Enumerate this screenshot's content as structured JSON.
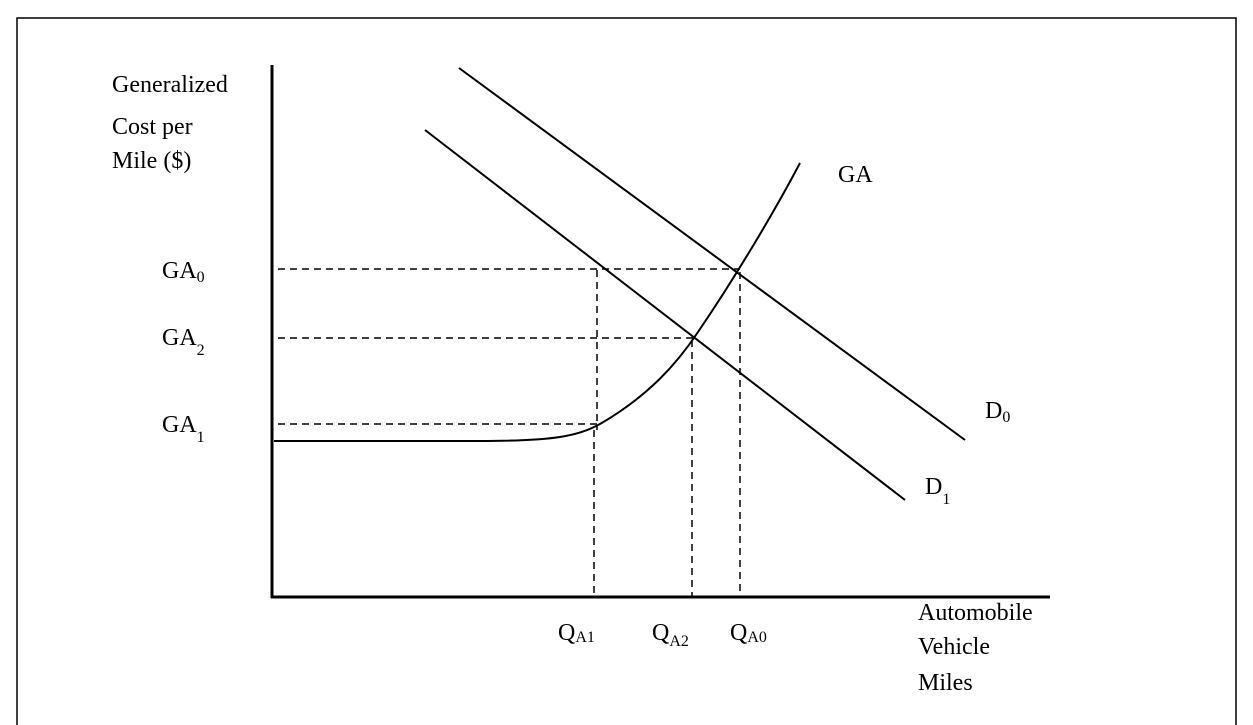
{
  "y_axis_label": [
    "Generalized",
    "Cost per",
    "Mile ($)"
  ],
  "x_axis_label": [
    "Automobile",
    "Vehicle",
    "Miles"
  ],
  "cost_levels": [
    {
      "base": "GA",
      "sub": "0"
    },
    {
      "base": "GA",
      "sub": "2"
    },
    {
      "base": "GA",
      "sub": "1"
    }
  ],
  "quantities": [
    {
      "base": "Q",
      "sub": "A1"
    },
    {
      "base": "Q",
      "sub": "A2"
    },
    {
      "base": "Q",
      "sub": "A0"
    }
  ],
  "curves": {
    "supply": "GA",
    "demand_0": {
      "base": "D",
      "sub": "0"
    },
    "demand_1": {
      "base": "D",
      "sub": "1"
    }
  }
}
